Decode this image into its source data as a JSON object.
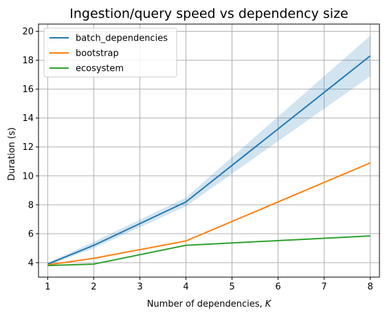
{
  "chart_data": {
    "type": "line",
    "title": "Ingestion/query speed vs dependency size",
    "xlabel_prefix": "Number of dependencies, ",
    "xlabel_var": "K",
    "ylabel": "Duration (s)",
    "xlim": [
      0.8,
      8.2
    ],
    "ylim": [
      3.0,
      20.5
    ],
    "x_ticks": [
      1,
      2,
      3,
      4,
      5,
      6,
      7,
      8
    ],
    "y_ticks": [
      4,
      6,
      8,
      10,
      12,
      14,
      16,
      18,
      20
    ],
    "grid": true,
    "legend_position": "top-left",
    "x": [
      1,
      2,
      4,
      8
    ],
    "series": [
      {
        "name": "batch_dependencies",
        "color": "#1f77b4",
        "values": [
          3.9,
          5.2,
          8.2,
          18.3
        ],
        "band_lower": [
          3.8,
          5.0,
          7.9,
          16.9
        ],
        "band_upper": [
          4.0,
          5.45,
          8.5,
          19.7
        ],
        "band_color": "#1f77b4"
      },
      {
        "name": "bootstrap",
        "color": "#ff7f0e",
        "values": [
          3.85,
          4.3,
          5.5,
          10.9
        ]
      },
      {
        "name": "ecosystem",
        "color": "#2ca02c",
        "values": [
          3.8,
          3.9,
          5.2,
          5.85
        ]
      }
    ]
  }
}
